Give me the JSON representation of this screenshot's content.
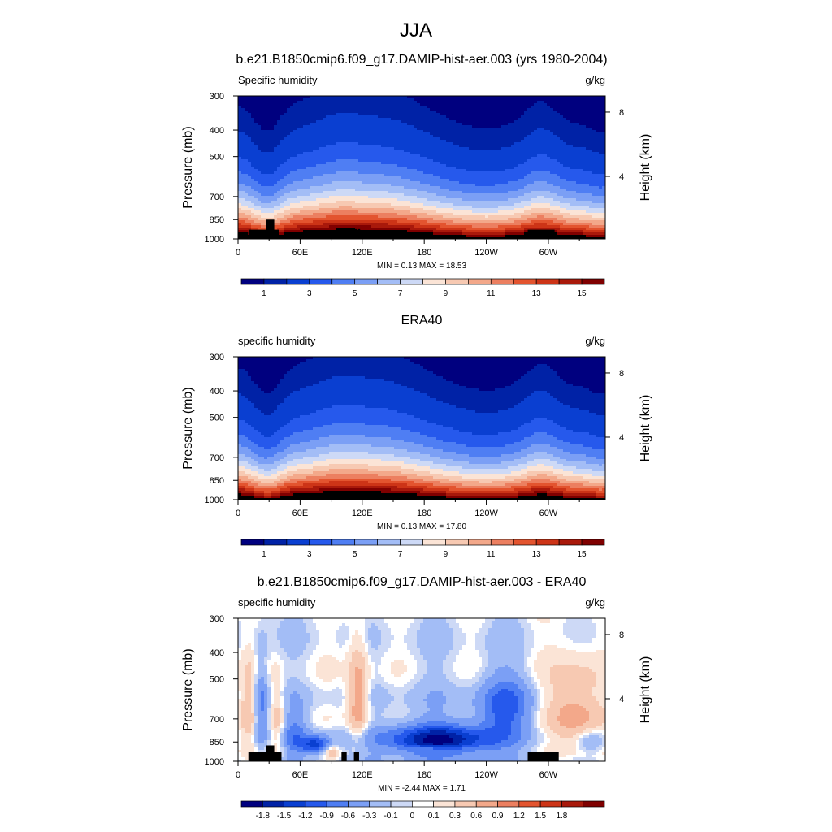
{
  "figure": {
    "title": "JJA",
    "colors": {
      "abs_palette": [
        "#00007f",
        "#0022a6",
        "#0a3fd1",
        "#2659ec",
        "#4f7ef3",
        "#7b9ff5",
        "#a3bdf6",
        "#cdd9f6",
        "#fbe4d6",
        "#f7c9b2",
        "#f3a88a",
        "#ec7f60",
        "#e3542f",
        "#cd3417",
        "#a9190b",
        "#800000"
      ],
      "diff_palette": [
        "#00007f",
        "#0022a6",
        "#0a3fd1",
        "#2659ec",
        "#4f7ef3",
        "#7b9ff5",
        "#a3bdf6",
        "#cdd9f6",
        "#ffffff",
        "#fbe4d6",
        "#f7c9b2",
        "#f3a88a",
        "#ec7f60",
        "#e3542f",
        "#cd3417",
        "#a9190b",
        "#800000"
      ],
      "topography": "#000000"
    }
  },
  "chart_data": [
    {
      "type": "heatmap",
      "title": "b.e21.B1850cmip6.f09_g17.DAMIP-hist-aer.003 (yrs 1980-2004)",
      "left_label": "Specific humidity",
      "units": "g/kg",
      "ylabel": "Pressure (mb)",
      "y2label": "Height (km)",
      "xticks": [
        "0",
        "60E",
        "120E",
        "180",
        "120W",
        "60W"
      ],
      "xtick_lon": [
        0,
        60,
        120,
        180,
        240,
        300
      ],
      "xlim": [
        0,
        355
      ],
      "yticks": [
        300,
        400,
        500,
        700,
        850,
        1000
      ],
      "ylim": [
        1000,
        300
      ],
      "height_ticks": [
        "8",
        "4"
      ],
      "height_tick_km": [
        8,
        4
      ],
      "stats": "MIN =   0.13  MAX =  18.53",
      "colorbar_labels": [
        "1",
        "3",
        "5",
        "7",
        "9",
        "11",
        "13",
        "15"
      ],
      "colorbar_levels": [
        0.5,
        1,
        2,
        3,
        4,
        5,
        6,
        7,
        8,
        9,
        10,
        11,
        12,
        13,
        14,
        15
      ],
      "field": "abs",
      "topography": [
        [
          10,
          40,
          925
        ],
        [
          27,
          35,
          850
        ],
        [
          100,
          103,
          920
        ],
        [
          113,
          115,
          920
        ],
        [
          116,
          118,
          920
        ],
        [
          280,
          306,
          925
        ]
      ]
    },
    {
      "type": "heatmap",
      "title": "ERA40",
      "left_label": "specific humidity",
      "units": "g/kg",
      "ylabel": "Pressure (mb)",
      "y2label": "Height (km)",
      "xticks": [
        "0",
        "60E",
        "120E",
        "180",
        "120W",
        "60W"
      ],
      "xtick_lon": [
        0,
        60,
        120,
        180,
        240,
        300
      ],
      "xlim": [
        0,
        355
      ],
      "yticks": [
        300,
        400,
        500,
        700,
        850,
        1000
      ],
      "ylim": [
        1000,
        300
      ],
      "height_ticks": [
        "8",
        "4"
      ],
      "height_tick_km": [
        8,
        4
      ],
      "stats": "MIN =   0.13  MAX =  17.80",
      "colorbar_labels": [
        "1",
        "3",
        "5",
        "7",
        "9",
        "11",
        "13",
        "15"
      ],
      "colorbar_levels": [
        0.5,
        1,
        2,
        3,
        4,
        5,
        6,
        7,
        8,
        9,
        10,
        11,
        12,
        13,
        14,
        15
      ],
      "field": "abs_era",
      "topography": []
    },
    {
      "type": "heatmap",
      "title": "b.e21.B1850cmip6.f09_g17.DAMIP-hist-aer.003 - ERA40",
      "left_label": "specific humidity",
      "units": "g/kg",
      "ylabel": "Pressure (mb)",
      "y2label": "Height (km)",
      "xticks": [
        "0",
        "60E",
        "120E",
        "180",
        "120W",
        "60W"
      ],
      "xtick_lon": [
        0,
        60,
        120,
        180,
        240,
        300
      ],
      "xlim": [
        0,
        355
      ],
      "yticks": [
        300,
        400,
        500,
        700,
        850,
        1000
      ],
      "ylim": [
        1000,
        300
      ],
      "height_ticks": [
        "8",
        "4"
      ],
      "height_tick_km": [
        8,
        4
      ],
      "stats": "MIN =  -2.44  MAX =   1.71",
      "colorbar_labels": [
        "-1.8",
        "-1.5",
        "-1.2",
        "-0.9",
        "-0.6",
        "-0.3",
        "-0.1",
        "0",
        "0.1",
        "0.3",
        "0.6",
        "0.9",
        "1.2",
        "1.5",
        "1.8"
      ],
      "colorbar_levels": [
        -1.8,
        -1.5,
        -1.2,
        -0.9,
        -0.6,
        -0.3,
        -0.1,
        0,
        0.1,
        0.3,
        0.6,
        0.9,
        1.2,
        1.5,
        1.8
      ],
      "field": "diff",
      "topography": [
        [
          10,
          42,
          925
        ],
        [
          27,
          35,
          875
        ],
        [
          100,
          105,
          925
        ],
        [
          112,
          117,
          925
        ],
        [
          280,
          310,
          925
        ]
      ]
    }
  ]
}
